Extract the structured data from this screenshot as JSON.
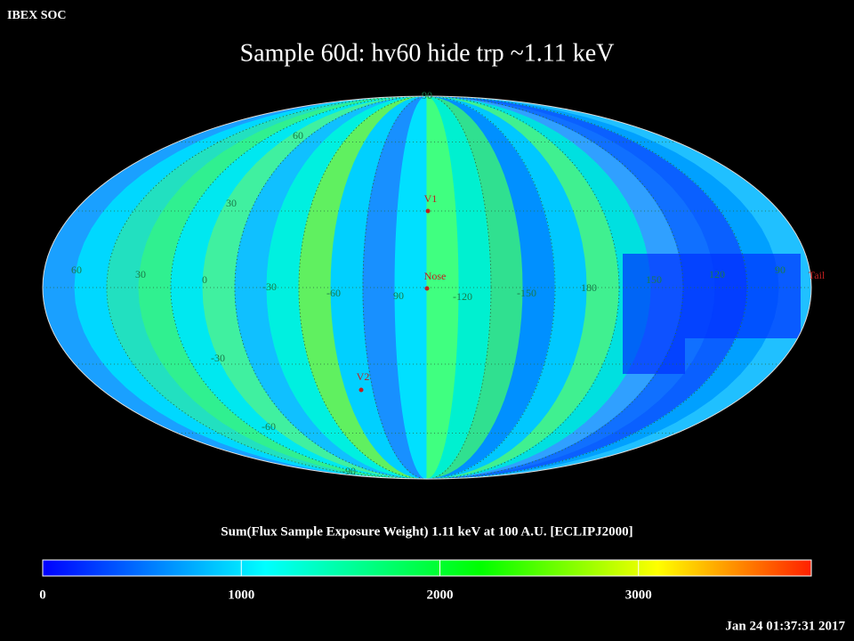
{
  "header": {
    "corner": "IBEX SOC",
    "title": "Sample 60d: hv60 hide trp ~1.11 keV",
    "timestamp": "Jan 24 01:37:31 2017"
  },
  "map": {
    "longitude_labels": [
      "60",
      "30",
      "0",
      "-30",
      "-60",
      "90",
      "-120",
      "-150",
      "180",
      "150",
      "120",
      "90"
    ],
    "latitude_labels": [
      "90",
      "60",
      "30",
      "-30",
      "-60",
      "-90"
    ],
    "markers": [
      "V1",
      "Nose",
      "V2",
      "Tail"
    ]
  },
  "colorbar": {
    "title": "Sum(Flux Sample Exposure Weight)  1.11 keV at 100 A.U. [ECLIPJ2000]",
    "range": [
      0,
      3870
    ],
    "ticks": [
      0,
      1000,
      2000,
      3000
    ]
  }
}
